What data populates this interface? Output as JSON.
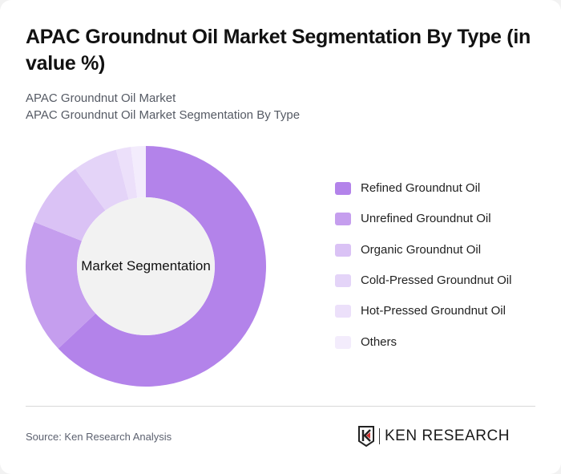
{
  "header": {
    "title": "APAC Groundnut Oil Market Segmentation By Type (in value %)",
    "subtitle_line1": "APAC Groundnut Oil Market",
    "subtitle_line2": "APAC Groundnut Oil Market Segmentation By Type"
  },
  "chart_data": {
    "type": "pie",
    "variant": "donut",
    "title": "APAC Groundnut Oil Market Segmentation By Type (in value %)",
    "center_label": "Market Segmentation",
    "categories": [
      "Refined Groundnut Oil",
      "Unrefined Groundnut Oil",
      "Organic Groundnut Oil",
      "Cold-Pressed Groundnut Oil",
      "Hot-Pressed Groundnut Oil",
      "Others"
    ],
    "values": [
      63,
      18,
      9,
      6,
      2,
      2
    ],
    "colors": [
      "#b383ea",
      "#c59eee",
      "#dac2f5",
      "#e4d4f8",
      "#ece0fa",
      "#f3ecfc"
    ],
    "legend_position": "right",
    "start_angle": "12 o'clock, clockwise"
  },
  "legend": {
    "items": [
      {
        "label": "Refined Groundnut Oil",
        "color": "#b383ea"
      },
      {
        "label": "Unrefined Groundnut Oil",
        "color": "#c59eee"
      },
      {
        "label": "Organic Groundnut Oil",
        "color": "#dac2f5"
      },
      {
        "label": "Cold-Pressed Groundnut Oil",
        "color": "#e4d4f8"
      },
      {
        "label": "Hot-Pressed Groundnut Oil",
        "color": "#ece0fa"
      },
      {
        "label": "Others",
        "color": "#f3ecfc"
      }
    ]
  },
  "footer": {
    "source": "Source: Ken Research Analysis",
    "logo_text": "KEN RESEARCH",
    "logo_icon": "ken-research-k-shield-icon"
  }
}
